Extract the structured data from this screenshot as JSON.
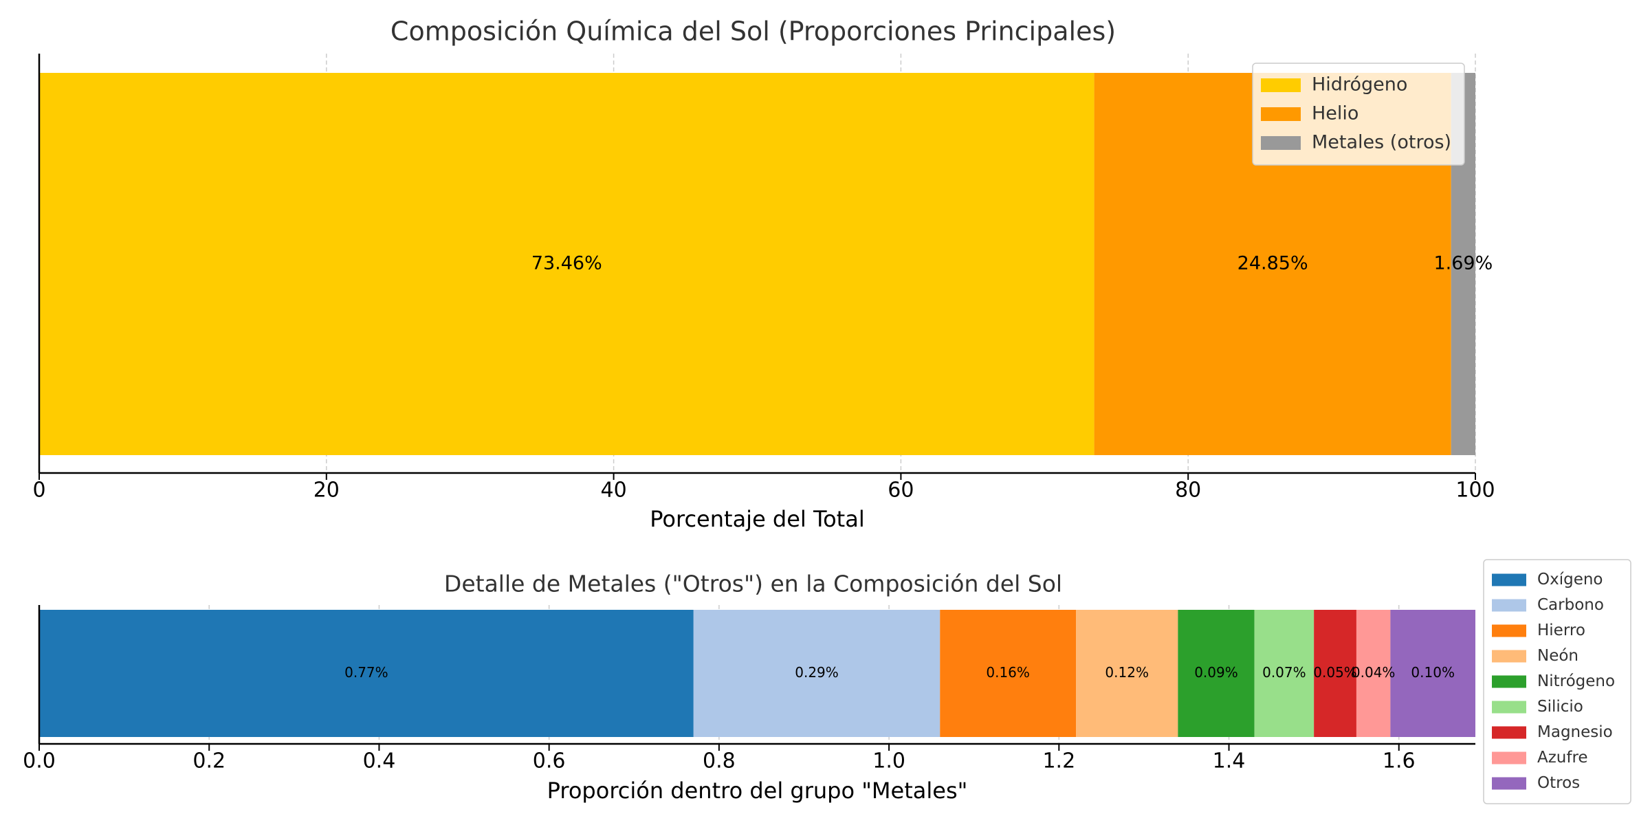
{
  "chart_data": [
    {
      "type": "bar",
      "orientation": "horizontal",
      "stacked": true,
      "title": "Composición Química del Sol (Proporciones Principales)",
      "xlabel": "Porcentaje del Total",
      "ylabel": "",
      "xlim": [
        0,
        100
      ],
      "xticks": [
        "0",
        "20",
        "40",
        "60",
        "80",
        "100"
      ],
      "grid": "vertical dashed",
      "legend_position": "top-right",
      "series": [
        {
          "name": "Hidrógeno",
          "value": 73.46,
          "label": "73.46%",
          "color": "#ffcc00"
        },
        {
          "name": "Helio",
          "value": 24.85,
          "label": "24.85%",
          "color": "#ff9900"
        },
        {
          "name": "Metales (otros)",
          "value": 1.69,
          "label": "1.69%",
          "color": "#999999"
        }
      ]
    },
    {
      "type": "bar",
      "orientation": "horizontal",
      "stacked": true,
      "title": "Detalle de Metales (\"Otros\") en la Composición del Sol",
      "xlabel": "Proporción dentro del grupo \"Metales\"",
      "ylabel": "",
      "xlim": [
        0,
        1.69
      ],
      "xticks": [
        "0.0",
        "0.2",
        "0.4",
        "0.6",
        "0.8",
        "1.0",
        "1.2",
        "1.4",
        "1.6"
      ],
      "grid": "vertical dashed",
      "legend_position": "outside right",
      "series": [
        {
          "name": "Oxígeno",
          "value": 0.77,
          "label": "0.77%",
          "color": "#1f77b4"
        },
        {
          "name": "Carbono",
          "value": 0.29,
          "label": "0.29%",
          "color": "#aec7e8"
        },
        {
          "name": "Hierro",
          "value": 0.16,
          "label": "0.16%",
          "color": "#ff7f0e"
        },
        {
          "name": "Neón",
          "value": 0.12,
          "label": "0.12%",
          "color": "#ffbb78"
        },
        {
          "name": "Nitrógeno",
          "value": 0.09,
          "label": "0.09%",
          "color": "#2ca02c"
        },
        {
          "name": "Silicio",
          "value": 0.07,
          "label": "0.07%",
          "color": "#98df8a"
        },
        {
          "name": "Magnesio",
          "value": 0.05,
          "label": "0.05%",
          "color": "#d62728"
        },
        {
          "name": "Azufre",
          "value": 0.04,
          "label": "0.04%",
          "color": "#ff9896"
        },
        {
          "name": "Otros",
          "value": 0.1,
          "label": "0.10%",
          "color": "#9467bd"
        }
      ]
    }
  ]
}
